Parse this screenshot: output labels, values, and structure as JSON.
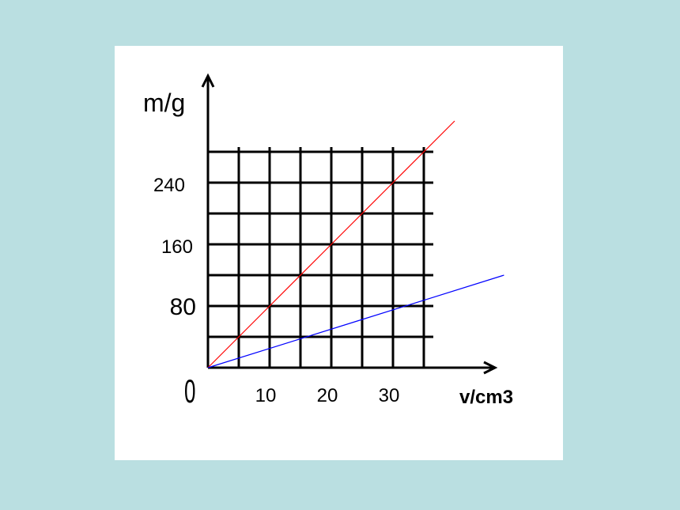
{
  "chart_data": {
    "type": "line",
    "xlabel": "v/cm3",
    "ylabel": "m/g",
    "origin_label": "0",
    "x_tick_labels": [
      {
        "value": 10,
        "label": "10"
      },
      {
        "value": 20,
        "label": "20"
      },
      {
        "value": 30,
        "label": "30"
      }
    ],
    "y_tick_labels": [
      {
        "value": 80,
        "label": "80"
      },
      {
        "value": 160,
        "label": "160"
      },
      {
        "value": 240,
        "label": "240"
      }
    ],
    "xlim": [
      0,
      35
    ],
    "ylim": [
      0,
      280
    ],
    "grid": true,
    "grid_x_step": 5,
    "grid_y_step": 40,
    "series": [
      {
        "color": "#ff0000",
        "x": [
          0,
          10,
          20,
          30,
          40
        ],
        "y": [
          0,
          80,
          160,
          240,
          320
        ]
      },
      {
        "color": "#0000ff",
        "x": [
          0,
          12,
          24,
          36,
          48
        ],
        "y": [
          0,
          30,
          60,
          90,
          120
        ]
      }
    ]
  }
}
